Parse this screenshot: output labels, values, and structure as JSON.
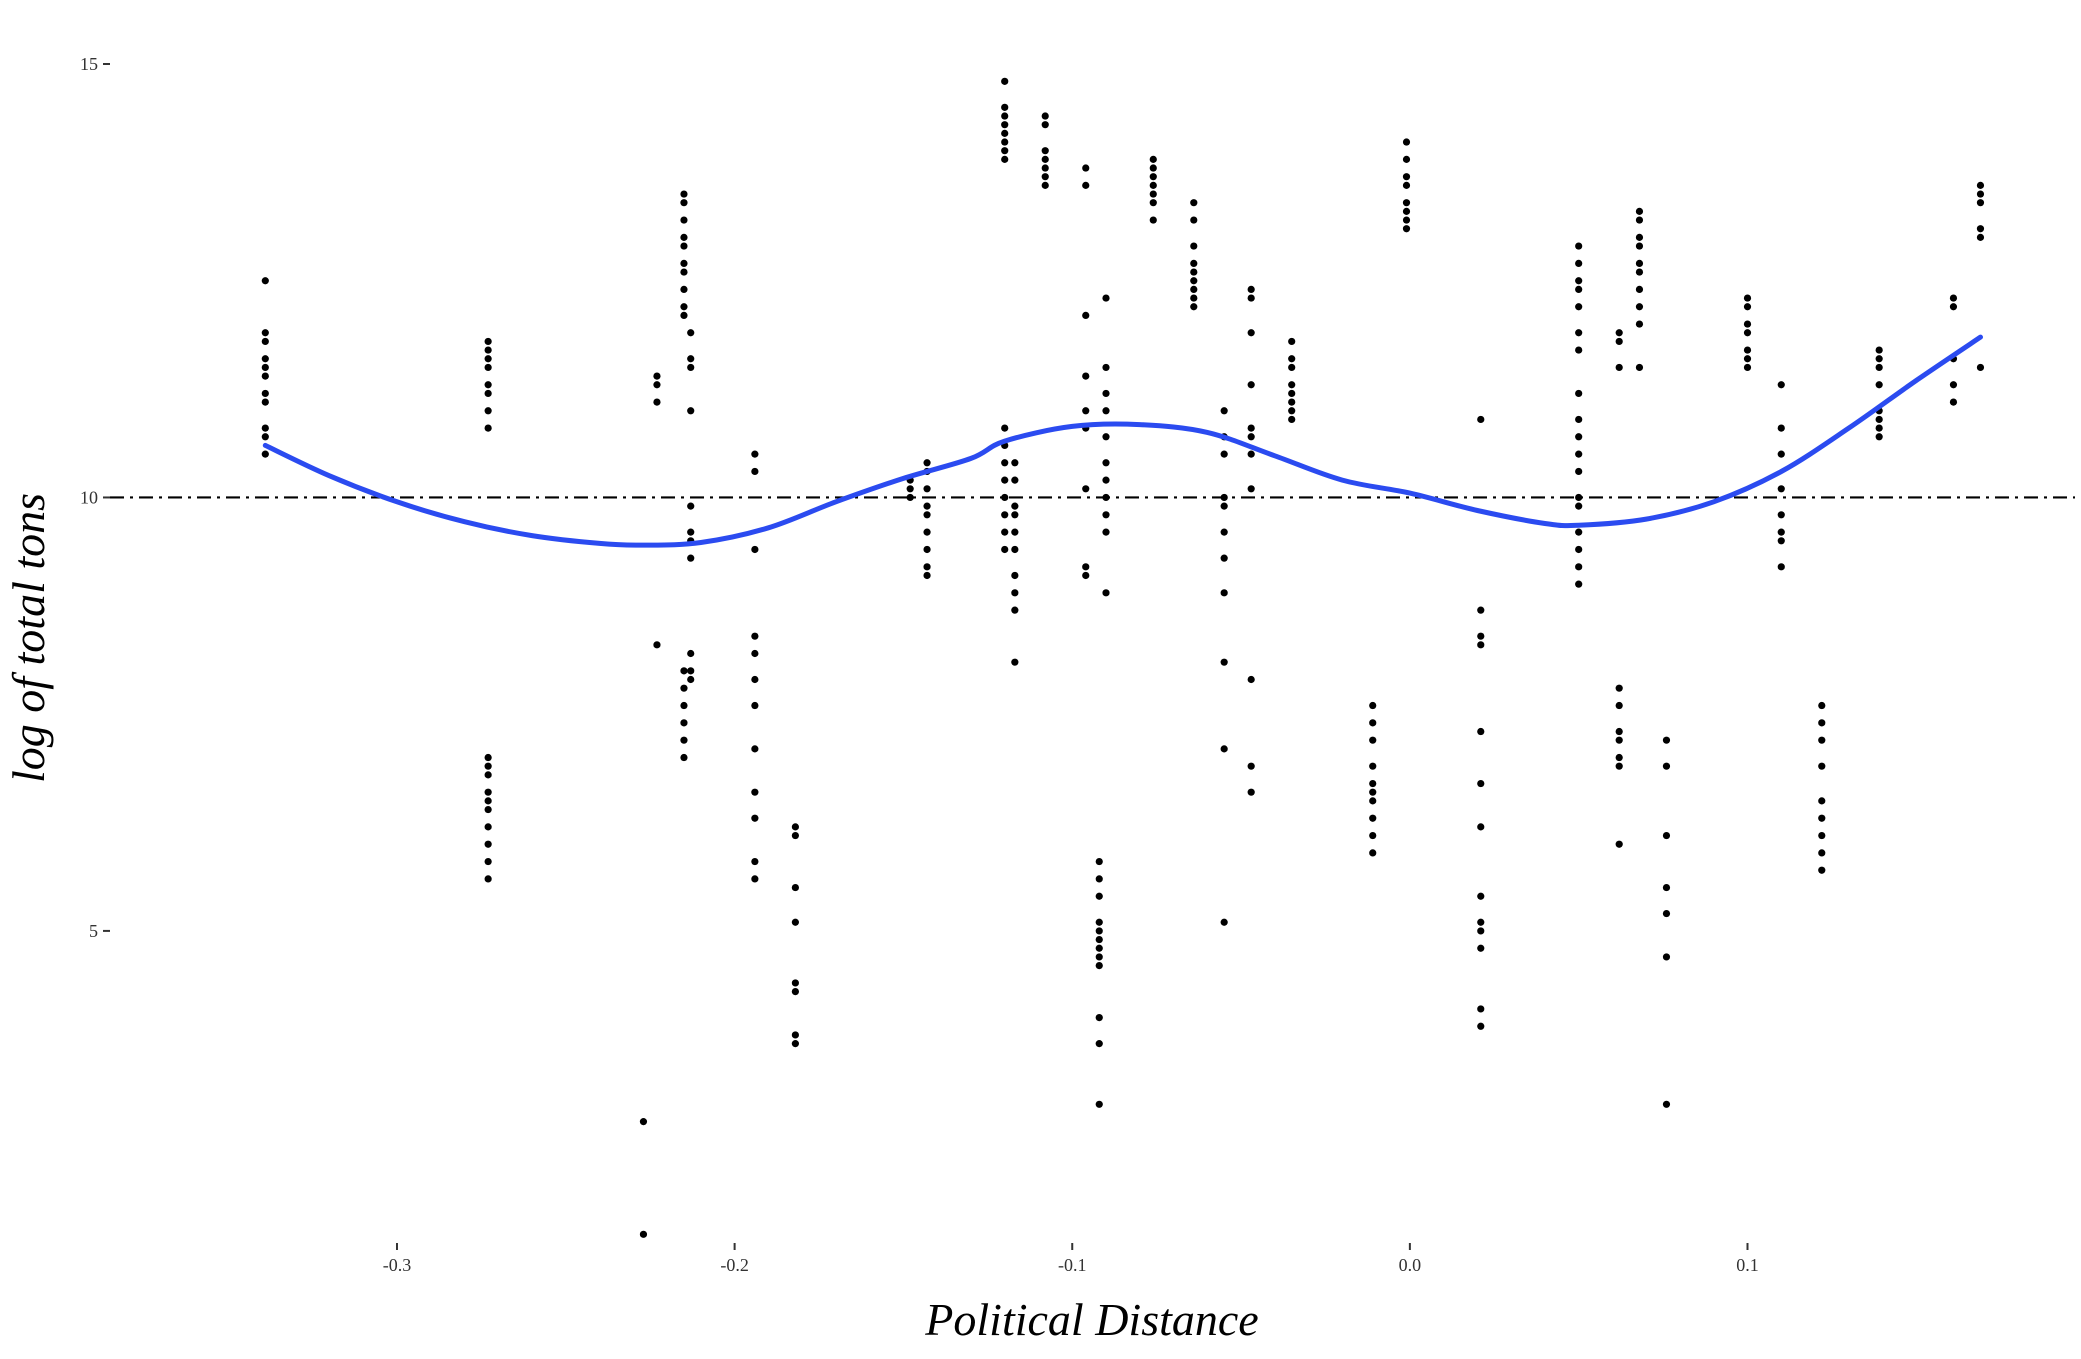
{
  "chart_data": {
    "type": "scatter",
    "title": "",
    "xlabel": "Political Distance",
    "ylabel": "log of total tons",
    "xlim": [
      -0.385,
      0.197
    ],
    "ylim": [
      1.4,
      15.3
    ],
    "xticks": [
      -0.3,
      -0.2,
      -0.1,
      0.0,
      0.1
    ],
    "xtick_labels": [
      "-0.3",
      "-0.2",
      "-0.1",
      "0.0",
      "0.1"
    ],
    "yticks": [
      5,
      10,
      15
    ],
    "ytick_labels": [
      "5",
      "10",
      "15"
    ],
    "grid": false,
    "legend": "none",
    "reference_line": {
      "y": 10,
      "style": "dash-dot",
      "color": "#000000"
    },
    "colors": {
      "points": "#000000",
      "smooth": "#2b4bf0"
    },
    "point_groups": [
      {
        "x": -0.339,
        "y": [
          12.5,
          11.9,
          11.8,
          11.6,
          11.5,
          11.4,
          11.2,
          11.1,
          10.8,
          10.7,
          10.5
        ]
      },
      {
        "x": -0.273,
        "y": [
          11.8,
          11.7,
          11.6,
          11.5,
          11.3,
          11.2,
          11.0,
          10.8,
          7.0,
          6.9,
          6.8,
          6.6,
          6.5,
          6.4,
          6.2,
          6.0,
          5.8,
          5.6
        ]
      },
      {
        "x": -0.227,
        "y": [
          2.8,
          1.5
        ]
      },
      {
        "x": -0.223,
        "y": [
          11.4,
          11.3,
          11.1,
          8.3
        ]
      },
      {
        "x": -0.215,
        "y": [
          13.5,
          13.4,
          13.2,
          13.0,
          12.9,
          12.7,
          12.6,
          12.4,
          12.2,
          12.1,
          8.0,
          7.8,
          7.6,
          7.4,
          7.2,
          7.0
        ]
      },
      {
        "x": -0.213,
        "y": [
          11.9,
          11.6,
          11.5,
          11.0,
          9.9,
          9.6,
          9.5,
          9.3,
          8.2,
          8.0,
          7.9
        ]
      },
      {
        "x": -0.194,
        "y": [
          10.5,
          10.3,
          9.4,
          8.4,
          8.2,
          7.9,
          7.6,
          7.1,
          6.6,
          6.3,
          5.8,
          5.6
        ]
      },
      {
        "x": -0.182,
        "y": [
          6.2,
          6.1,
          5.5,
          5.1,
          4.4,
          4.3,
          3.8,
          3.7
        ]
      },
      {
        "x": -0.148,
        "y": [
          10.2,
          10.1,
          10.0
        ]
      },
      {
        "x": -0.143,
        "y": [
          10.4,
          10.3,
          10.1,
          9.9,
          9.8,
          9.6,
          9.4,
          9.2,
          9.1
        ]
      },
      {
        "x": -0.12,
        "y": [
          14.8,
          14.5,
          14.4,
          14.3,
          14.2,
          14.1,
          14.0,
          13.9,
          10.8,
          10.6,
          10.4,
          10.2,
          10.0,
          9.8,
          9.6,
          9.4
        ]
      },
      {
        "x": -0.117,
        "y": [
          10.4,
          10.2,
          9.9,
          9.8,
          9.6,
          9.4,
          9.1,
          8.9,
          8.7,
          8.1
        ]
      },
      {
        "x": -0.108,
        "y": [
          14.4,
          14.3,
          14.0,
          13.9,
          13.8,
          13.7,
          13.6
        ]
      },
      {
        "x": -0.096,
        "y": [
          13.8,
          13.6,
          12.1,
          11.4,
          11.0,
          10.8,
          10.1,
          9.2,
          9.1
        ]
      },
      {
        "x": -0.092,
        "y": [
          5.8,
          5.6,
          5.4,
          5.1,
          5.0,
          4.9,
          4.8,
          4.7,
          4.6,
          4.0,
          3.7,
          3.0
        ]
      },
      {
        "x": -0.09,
        "y": [
          12.3,
          11.5,
          11.2,
          11.0,
          10.7,
          10.4,
          10.2,
          10.0,
          9.8,
          9.6,
          8.9
        ]
      },
      {
        "x": -0.076,
        "y": [
          13.9,
          13.8,
          13.7,
          13.6,
          13.5,
          13.4,
          13.2
        ]
      },
      {
        "x": -0.064,
        "y": [
          13.4,
          13.2,
          12.9,
          12.7,
          12.6,
          12.5,
          12.4,
          12.3,
          12.2
        ]
      },
      {
        "x": -0.055,
        "y": [
          11.0,
          10.7,
          10.5,
          10.0,
          9.9,
          9.6,
          9.3,
          8.9,
          8.1,
          7.1,
          5.1
        ]
      },
      {
        "x": -0.047,
        "y": [
          12.4,
          12.3,
          11.9,
          11.3,
          10.8,
          10.7,
          10.5,
          10.1,
          7.9,
          6.9,
          6.6
        ]
      },
      {
        "x": -0.035,
        "y": [
          11.8,
          11.6,
          11.5,
          11.3,
          11.2,
          11.1,
          11.0,
          10.9
        ]
      },
      {
        "x": -0.011,
        "y": [
          7.6,
          7.4,
          7.2,
          6.9,
          6.7,
          6.6,
          6.5,
          6.3,
          6.1,
          5.9
        ]
      },
      {
        "x": -0.001,
        "y": [
          14.1,
          13.9,
          13.7,
          13.6,
          13.4,
          13.3,
          13.2,
          13.1
        ]
      },
      {
        "x": 0.021,
        "y": [
          10.9,
          8.7,
          8.4,
          8.3,
          7.3,
          6.7,
          6.2,
          5.4,
          5.1,
          5.0,
          4.8,
          4.1,
          3.9
        ]
      },
      {
        "x": 0.05,
        "y": [
          12.9,
          12.7,
          12.5,
          12.4,
          12.2,
          11.9,
          11.7,
          11.2,
          10.9,
          10.7,
          10.5,
          10.3,
          10.0,
          9.9,
          9.6,
          9.4,
          9.2,
          9.0
        ]
      },
      {
        "x": 0.062,
        "y": [
          11.9,
          11.8,
          11.5,
          7.8,
          7.6,
          7.3,
          7.2,
          7.0,
          6.9,
          6.0
        ]
      },
      {
        "x": 0.068,
        "y": [
          13.3,
          13.2,
          13.0,
          12.9,
          12.7,
          12.6,
          12.4,
          12.2,
          12.0,
          11.5
        ]
      },
      {
        "x": 0.076,
        "y": [
          7.2,
          6.9,
          6.1,
          5.5,
          5.2,
          4.7,
          3.0
        ]
      },
      {
        "x": 0.1,
        "y": [
          12.3,
          12.2,
          12.0,
          11.9,
          11.7,
          11.6,
          11.5
        ]
      },
      {
        "x": 0.11,
        "y": [
          11.3,
          10.8,
          10.5,
          10.1,
          9.8,
          9.6,
          9.5,
          9.2
        ]
      },
      {
        "x": 0.122,
        "y": [
          7.6,
          7.4,
          7.2,
          6.9,
          6.5,
          6.3,
          6.1,
          5.9,
          5.7
        ]
      },
      {
        "x": 0.139,
        "y": [
          11.7,
          11.6,
          11.5,
          11.3,
          11.0,
          10.9,
          10.8,
          10.7
        ]
      },
      {
        "x": 0.161,
        "y": [
          12.3,
          12.2,
          11.6,
          11.3,
          11.1
        ]
      },
      {
        "x": 0.169,
        "y": [
          13.6,
          13.5,
          13.4,
          13.1,
          13.0,
          11.5
        ]
      }
    ],
    "smooth_line": {
      "x": [
        -0.339,
        -0.32,
        -0.3,
        -0.28,
        -0.26,
        -0.24,
        -0.227,
        -0.21,
        -0.19,
        -0.17,
        -0.15,
        -0.13,
        -0.12,
        -0.1,
        -0.08,
        -0.06,
        -0.04,
        -0.02,
        0.0,
        0.02,
        0.04,
        0.05,
        0.07,
        0.09,
        0.11,
        0.13,
        0.15,
        0.169
      ],
      "y": [
        10.6,
        10.25,
        9.95,
        9.72,
        9.56,
        9.47,
        9.45,
        9.48,
        9.65,
        9.95,
        10.22,
        10.45,
        10.65,
        10.82,
        10.84,
        10.75,
        10.48,
        10.2,
        10.05,
        9.85,
        9.7,
        9.68,
        9.75,
        9.95,
        10.3,
        10.8,
        11.35,
        11.85
      ]
    }
  }
}
